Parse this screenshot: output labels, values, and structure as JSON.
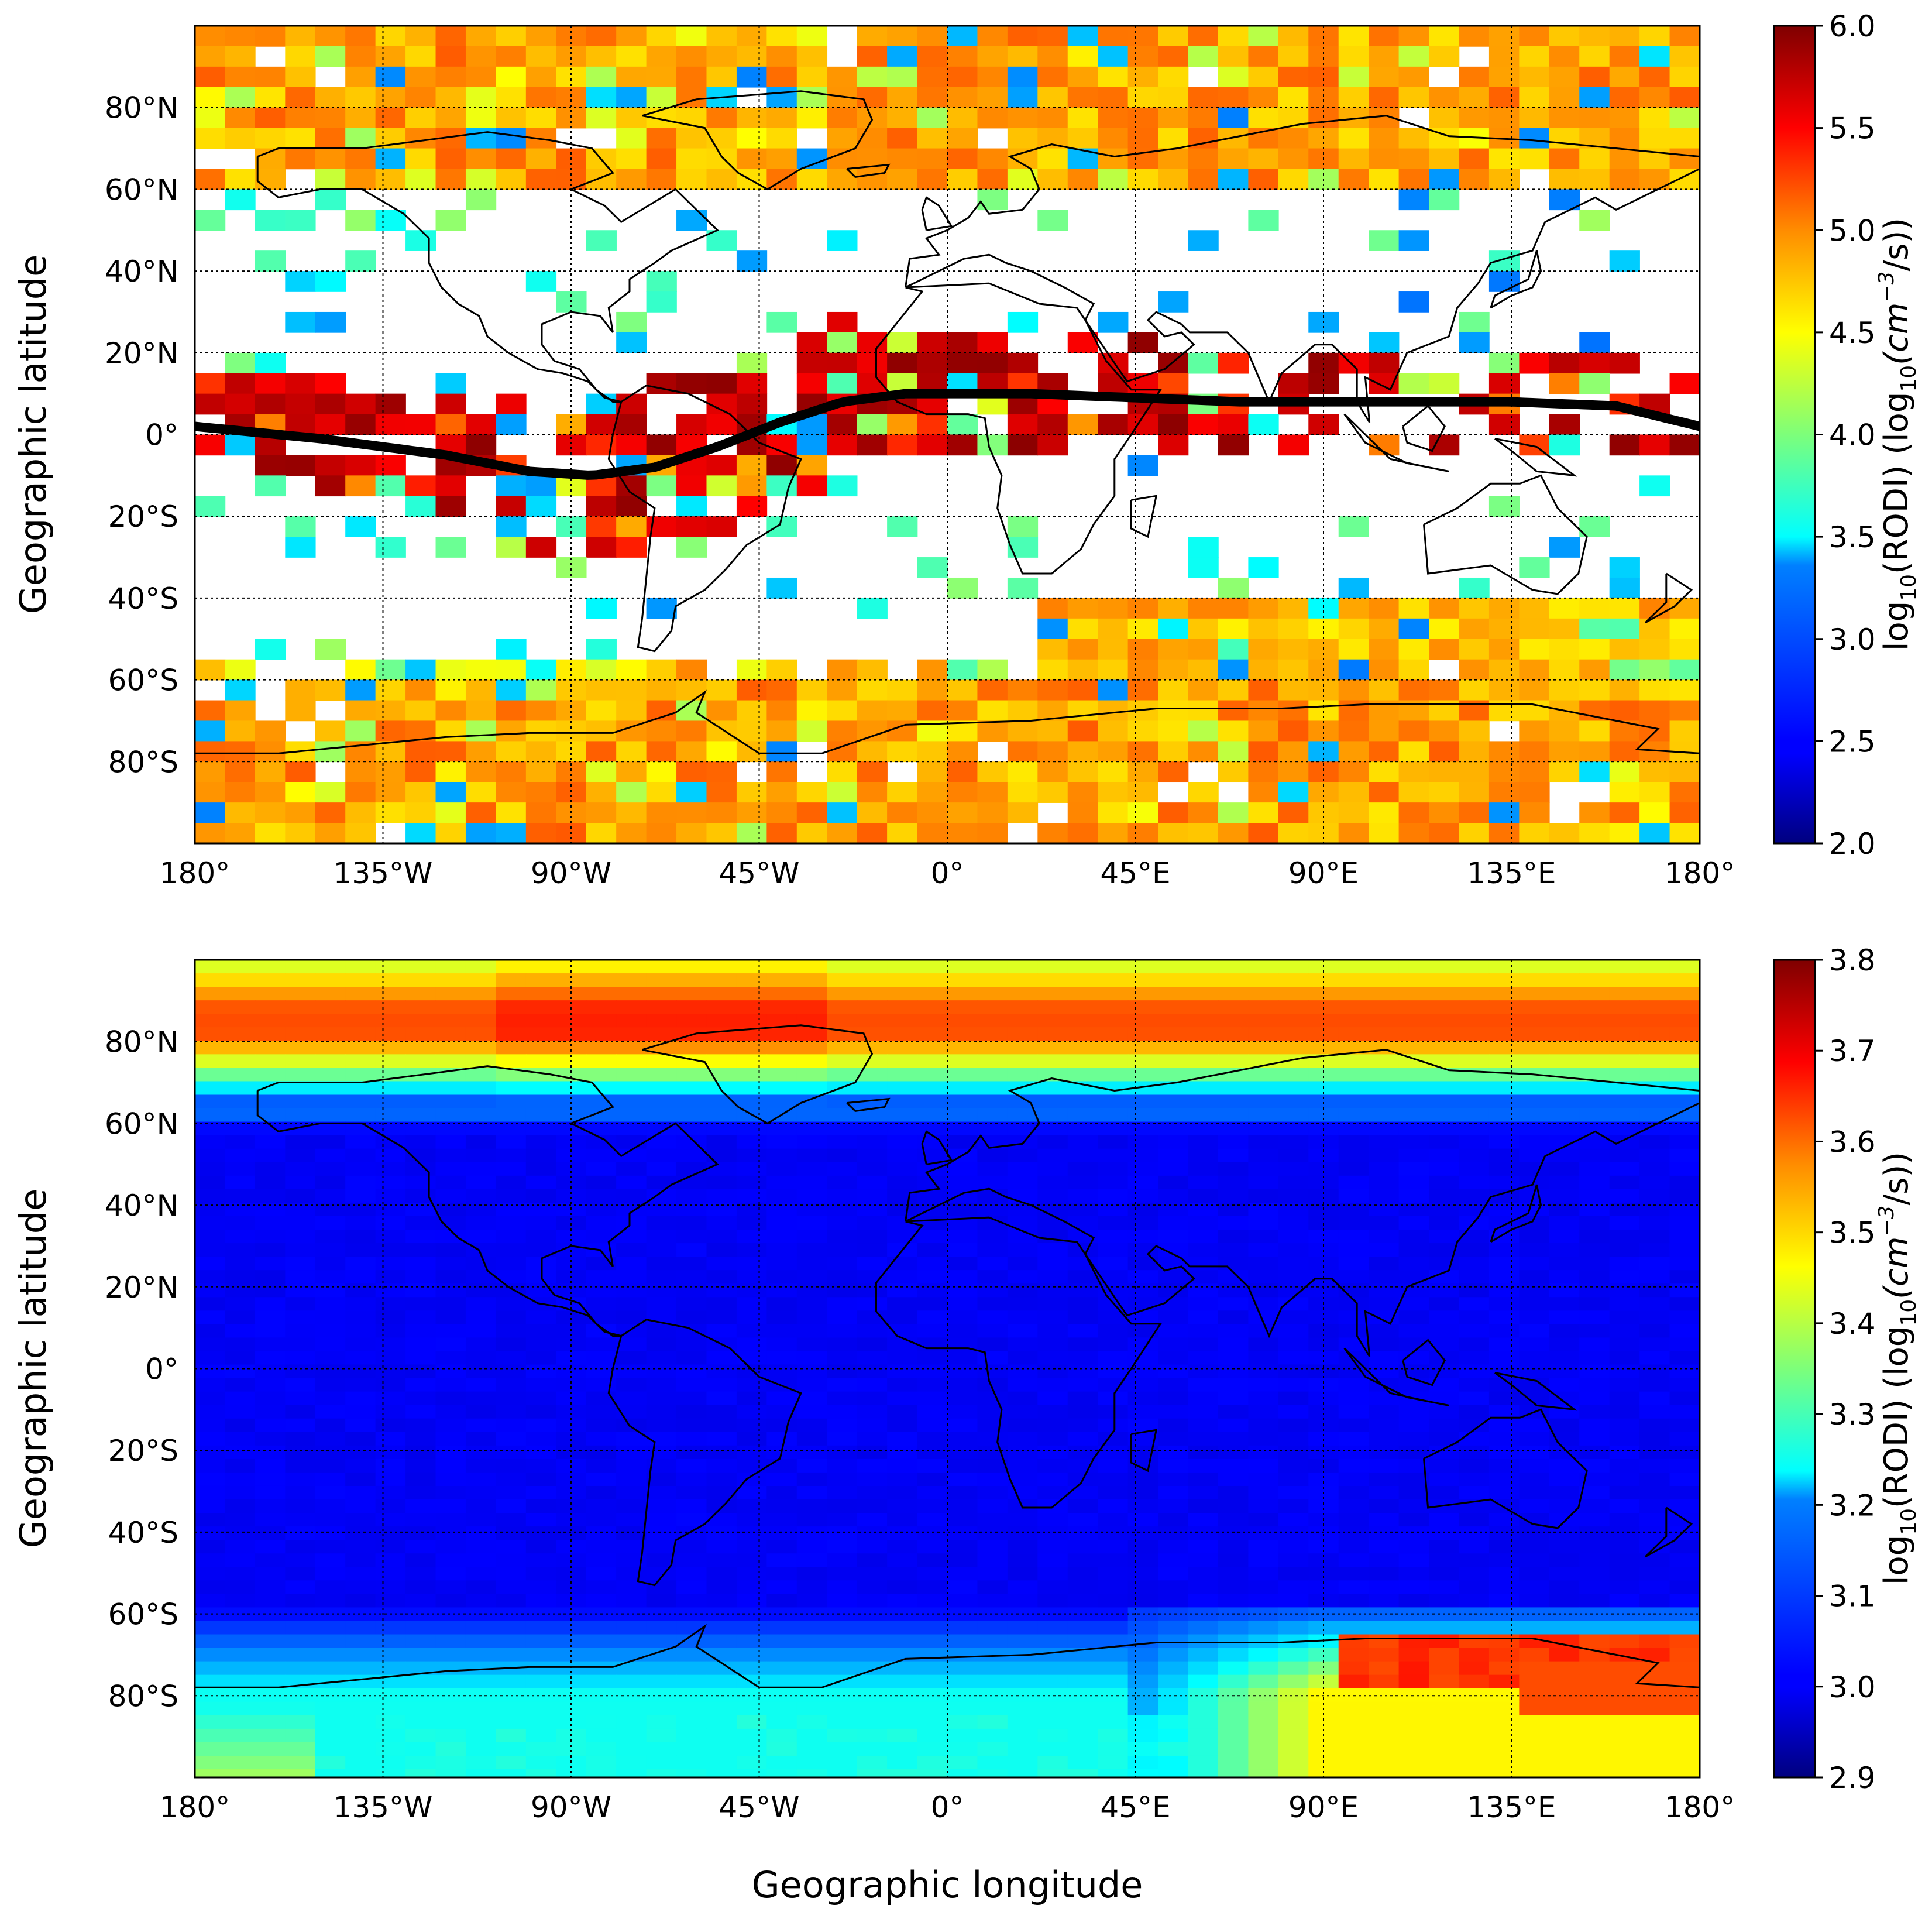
{
  "chart_data": [
    {
      "type": "heatmap",
      "title": "",
      "xlabel": "",
      "ylabel": "Geographic latitude",
      "x_ticks": [
        "180°",
        "135°W",
        "90°W",
        "45°W",
        "0°",
        "45°E",
        "90°E",
        "135°E",
        "180°"
      ],
      "y_ticks": [
        "80°N",
        "60°N",
        "40°N",
        "20°N",
        "0°",
        "20°S",
        "40°S",
        "60°S",
        "80°S"
      ],
      "xlim": [
        -180,
        180
      ],
      "ylim": [
        -100,
        100
      ],
      "colorbar": {
        "label_prefix": "log",
        "label_sub": "10",
        "label_mid": "(RODI) (log",
        "label_sub2": "10",
        "label_unit": "(cm",
        "label_sup": "−3",
        "label_end": "/s))",
        "range": [
          2.0,
          6.0
        ],
        "ticks": [
          "2.0",
          "2.5",
          "3.0",
          "3.5",
          "4.0",
          "4.5",
          "5.0",
          "5.5",
          "6.0"
        ]
      },
      "overlay": {
        "name": "magnetic dip equator",
        "points": [
          [
            -180,
            2
          ],
          [
            -150,
            -1
          ],
          [
            -120,
            -5
          ],
          [
            -100,
            -9
          ],
          [
            -85,
            -10
          ],
          [
            -70,
            -8
          ],
          [
            -55,
            -3
          ],
          [
            -40,
            3
          ],
          [
            -25,
            8
          ],
          [
            -10,
            10
          ],
          [
            0,
            10
          ],
          [
            20,
            10
          ],
          [
            45,
            9
          ],
          [
            70,
            8
          ],
          [
            100,
            8
          ],
          [
            135,
            8
          ],
          [
            160,
            7
          ],
          [
            180,
            2
          ]
        ]
      },
      "description_bands": {
        "polar_north_level": 4.8,
        "polar_south_level": 4.8,
        "equatorial_band_level": 5.5,
        "sparse_midlatitude_level": 3.2
      }
    },
    {
      "type": "heatmap",
      "title": "",
      "xlabel": "Geographic longitude",
      "ylabel": "Geographic latitude",
      "x_ticks": [
        "180°",
        "135°W",
        "90°W",
        "45°W",
        "0°",
        "45°E",
        "90°E",
        "135°E",
        "180°"
      ],
      "y_ticks": [
        "80°N",
        "60°N",
        "40°N",
        "20°N",
        "0°",
        "20°S",
        "40°S",
        "60°S",
        "80°S"
      ],
      "xlim": [
        -180,
        180
      ],
      "ylim": [
        -100,
        100
      ],
      "colorbar": {
        "label_prefix": "log",
        "label_sub": "10",
        "label_mid": "(RODI) (log",
        "label_sub2": "10",
        "label_unit": "(cm",
        "label_sup": "−3",
        "label_end": "/s))",
        "range": [
          2.9,
          3.8
        ],
        "ticks": [
          "2.9",
          "3.0",
          "3.1",
          "3.2",
          "3.3",
          "3.4",
          "3.5",
          "3.6",
          "3.7",
          "3.8"
        ]
      },
      "description_bands": {
        "background_level": 3.0,
        "north_polar_level": 3.65,
        "south_polar_max_level": 3.7
      }
    }
  ]
}
